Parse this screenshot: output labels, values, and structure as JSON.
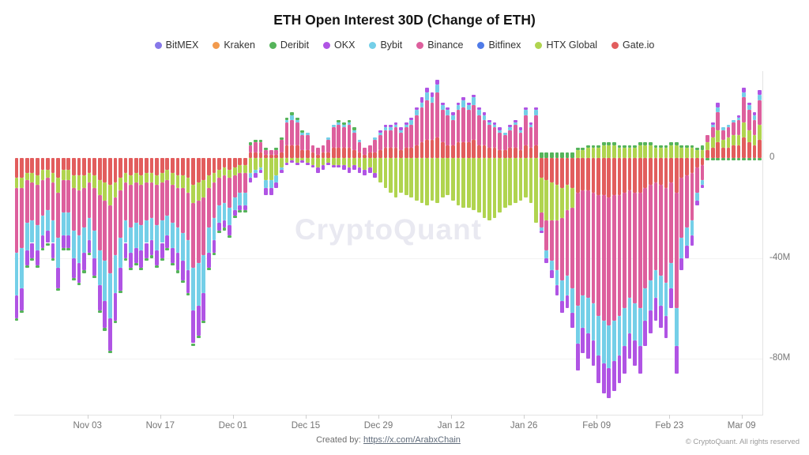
{
  "title": "ETH Open Interest 30D (Change of ETH)",
  "watermark": "CryptoQuant",
  "footer": {
    "created_by_label": "Created by:",
    "created_by_link": "https://x.com/ArabxChain",
    "copyright": "© CryptoQuant. All rights reserved"
  },
  "chart_data": {
    "type": "bar",
    "stacked": true,
    "title": "ETH Open Interest 30D (Change of ETH)",
    "unit": "M",
    "legend_position": "top",
    "grid": "horizontal-faint",
    "legend": [
      {
        "name": "BitMEX",
        "color": "#8678e9"
      },
      {
        "name": "Kraken",
        "color": "#f29a4d"
      },
      {
        "name": "Deribit",
        "color": "#55b45a"
      },
      {
        "name": "OKX",
        "color": "#b054e4"
      },
      {
        "name": "Bybit",
        "color": "#74cfe8"
      },
      {
        "name": "Binance",
        "color": "#dd5f9d"
      },
      {
        "name": "Bitfinex",
        "color": "#4f7be8"
      },
      {
        "name": "HTX Global",
        "color": "#b0d44f"
      },
      {
        "name": "Gate.io",
        "color": "#e25d5d"
      }
    ],
    "note": "values in millions; series not listed per-bar (BitMEX, Kraken, Bitfinex) are ~0",
    "stack_order": [
      "Gate.io",
      "HTX Global",
      "Binance",
      "Bybit",
      "OKX",
      "Deribit"
    ],
    "y_axis": {
      "side": "right",
      "max": 34.5,
      "min": -102.5,
      "ticks": [
        {
          "label": "0",
          "value": 0
        },
        {
          "label": "-40M",
          "value": -40
        },
        {
          "label": "-80M",
          "value": -80
        }
      ],
      "gridlines": [
        -40,
        -80
      ]
    },
    "x_axis": {
      "ticks": [
        {
          "label": "Nov 03",
          "index": 13.6
        },
        {
          "label": "Nov 17",
          "index": 27.6
        },
        {
          "label": "Dec 01",
          "index": 41.6
        },
        {
          "label": "Dec 15",
          "index": 55.6
        },
        {
          "label": "Dec 29",
          "index": 69.6
        },
        {
          "label": "Jan 12",
          "index": 83.6
        },
        {
          "label": "Jan 26",
          "index": 97.6
        },
        {
          "label": "Feb 09",
          "index": 111.6
        },
        {
          "label": "Feb 23",
          "index": 125.6
        },
        {
          "label": "Mar 09",
          "index": 139.5
        }
      ]
    },
    "bars": [
      [
        -8,
        -4,
        -26,
        -17,
        -9,
        -1
      ],
      [
        -8,
        -4,
        -24,
        -16,
        -9,
        -1
      ],
      [
        -6,
        -3,
        -17,
        -11,
        -6,
        -1
      ],
      [
        -6,
        -4,
        -15,
        -9,
        -6,
        -1
      ],
      [
        -7,
        -4,
        -16,
        -10,
        -6,
        -1
      ],
      [
        -5,
        -4,
        -14,
        -8,
        -5,
        -1
      ],
      [
        -5,
        -3,
        -13,
        -8,
        -5,
        -1
      ],
      [
        -6,
        -4,
        -15,
        -9,
        -6,
        -1
      ],
      [
        -8,
        -6,
        -18,
        -12,
        -8,
        -1
      ],
      [
        -5,
        -4,
        -13,
        -9,
        -5,
        -1
      ],
      [
        -5,
        -4,
        -13,
        -9,
        -5,
        -1
      ],
      [
        -7,
        -5,
        -17,
        -11,
        -8,
        -1
      ],
      [
        -7,
        -6,
        -18,
        -11,
        -8,
        -1
      ],
      [
        -7,
        -5,
        -16,
        -10,
        -7,
        -1
      ],
      [
        -6,
        -4,
        -14,
        -9,
        -5,
        -1
      ],
      [
        -7,
        -5,
        -17,
        -11,
        -7,
        -1
      ],
      [
        -9,
        -6,
        -22,
        -14,
        -10,
        -1
      ],
      [
        -10,
        -7,
        -24,
        -16,
        -11,
        -1
      ],
      [
        -11,
        -8,
        -27,
        -18,
        -13,
        -1
      ],
      [
        -10,
        -6,
        -23,
        -15,
        -11,
        -1
      ],
      [
        -8,
        -5,
        -19,
        -12,
        -9,
        -1
      ],
      [
        -6,
        -4,
        -15,
        -9,
        -6,
        -1
      ],
      [
        -7,
        -4,
        -17,
        -10,
        -6,
        -1
      ],
      [
        -6,
        -4,
        -16,
        -10,
        -6,
        -1
      ],
      [
        -7,
        -4,
        -16,
        -10,
        -7,
        -1
      ],
      [
        -6,
        -4,
        -15,
        -9,
        -6,
        -1
      ],
      [
        -6,
        -4,
        -14,
        -9,
        -6,
        -1
      ],
      [
        -7,
        -4,
        -16,
        -10,
        -6,
        -1
      ],
      [
        -6,
        -4,
        -15,
        -9,
        -6,
        -1
      ],
      [
        -5,
        -4,
        -14,
        -8,
        -5,
        -1
      ],
      [
        -6,
        -5,
        -15,
        -10,
        -6,
        -1
      ],
      [
        -7,
        -5,
        -16,
        -10,
        -7,
        -1
      ],
      [
        -7,
        -5,
        -18,
        -11,
        -8,
        -1
      ],
      [
        -8,
        -6,
        -19,
        -12,
        -9,
        -1
      ],
      [
        -11,
        -7,
        -26,
        -17,
        -13,
        -1
      ],
      [
        -10,
        -7,
        -25,
        -17,
        -12,
        -1
      ],
      [
        -9,
        -7,
        -23,
        -15,
        -11,
        -1
      ],
      [
        -7,
        -5,
        -16,
        -10,
        -6,
        -1
      ],
      [
        -6,
        -4,
        -14,
        -9,
        -5,
        -1
      ],
      [
        -5,
        -3,
        -11,
        -7,
        -3,
        -1
      ],
      [
        -4,
        -3,
        -11,
        -7,
        -3,
        -1
      ],
      [
        -5,
        -3,
        -12,
        -7,
        -4,
        -1
      ],
      [
        -4,
        -3,
        -9,
        -5,
        -2,
        -1
      ],
      [
        -3,
        -3,
        -8,
        -5,
        -2,
        -1
      ],
      [
        -3,
        -3,
        -8,
        -5,
        -2,
        -1
      ],
      [
        2,
        -6,
        3,
        -2,
        -2,
        1
      ],
      [
        2,
        -5,
        4,
        -1,
        -2,
        1
      ],
      [
        2,
        -4,
        4,
        -1,
        -1,
        1
      ],
      [
        1,
        -9,
        2,
        -3,
        -3,
        1
      ],
      [
        1,
        -9,
        2,
        -3,
        -3,
        0
      ],
      [
        1,
        -7,
        2,
        -3,
        -2,
        1
      ],
      [
        2,
        -4,
        5,
        -1,
        -1,
        1
      ],
      [
        5,
        -2,
        9,
        1,
        -1,
        1
      ],
      [
        5,
        -1,
        10,
        2,
        -1,
        1
      ],
      [
        5,
        -2,
        9,
        1,
        -1,
        1
      ],
      [
        3,
        -1,
        6,
        1,
        -1,
        1
      ],
      [
        3,
        -2,
        6,
        1,
        -1,
        0
      ],
      [
        2,
        -3,
        3,
        0,
        -1,
        0
      ],
      [
        1,
        -4,
        3,
        0,
        -2,
        0
      ],
      [
        2,
        -3,
        3,
        0,
        -2,
        0
      ],
      [
        2,
        -2,
        5,
        1,
        -1,
        0
      ],
      [
        4,
        -3,
        8,
        1,
        -1,
        0
      ],
      [
        4,
        -3,
        9,
        1,
        -1,
        1
      ],
      [
        4,
        -3,
        8,
        1,
        -2,
        1
      ],
      [
        4,
        -4,
        9,
        1,
        -2,
        1
      ],
      [
        3,
        -3,
        7,
        1,
        -2,
        1
      ],
      [
        2,
        -4,
        4,
        1,
        -2,
        0
      ],
      [
        1,
        -5,
        3,
        0,
        -2,
        0
      ],
      [
        2,
        -4,
        3,
        0,
        -2,
        0
      ],
      [
        2,
        -6,
        5,
        1,
        -2,
        0
      ],
      [
        3,
        -10,
        6,
        1,
        1,
        0
      ],
      [
        4,
        -12,
        7,
        1,
        1,
        0
      ],
      [
        4,
        -14,
        7,
        1,
        1,
        0
      ],
      [
        4,
        -16,
        8,
        1,
        1,
        0
      ],
      [
        3,
        -14,
        7,
        1,
        1,
        0
      ],
      [
        4,
        -15,
        8,
        1,
        1,
        0
      ],
      [
        4,
        -16,
        9,
        2,
        1,
        0
      ],
      [
        5,
        -17,
        12,
        2,
        1,
        0
      ],
      [
        6,
        -18,
        14,
        2,
        2,
        0
      ],
      [
        7,
        -19,
        16,
        3,
        2,
        0
      ],
      [
        7,
        -17,
        15,
        2,
        2,
        0
      ],
      [
        8,
        -18,
        18,
        3,
        2,
        0
      ],
      [
        6,
        -16,
        13,
        2,
        1,
        0
      ],
      [
        5,
        -15,
        12,
        2,
        1,
        0
      ],
      [
        5,
        -17,
        10,
        2,
        1,
        0
      ],
      [
        6,
        -19,
        13,
        2,
        1,
        0
      ],
      [
        6,
        -20,
        14,
        3,
        1,
        0
      ],
      [
        6,
        -20,
        13,
        2,
        1,
        0
      ],
      [
        7,
        -21,
        14,
        3,
        1,
        0
      ],
      [
        5,
        -22,
        12,
        2,
        1,
        0
      ],
      [
        5,
        -24,
        10,
        2,
        1,
        0
      ],
      [
        4,
        -25,
        9,
        1,
        1,
        0
      ],
      [
        4,
        -24,
        8,
        1,
        1,
        0
      ],
      [
        3,
        -22,
        7,
        1,
        1,
        0
      ],
      [
        3,
        -20,
        6,
        1,
        0,
        0
      ],
      [
        4,
        -19,
        7,
        1,
        1,
        0
      ],
      [
        4,
        -18,
        9,
        1,
        1,
        0
      ],
      [
        3,
        -17,
        7,
        1,
        1,
        0
      ],
      [
        5,
        -16,
        12,
        2,
        1,
        0
      ],
      [
        4,
        -18,
        8,
        1,
        1,
        0
      ],
      [
        5,
        -26,
        12,
        2,
        1,
        0
      ],
      [
        -8,
        -14,
        -6,
        -1,
        -1,
        2
      ],
      [
        -9,
        -16,
        -12,
        -3,
        -2,
        2
      ],
      [
        -10,
        -15,
        -16,
        -4,
        -3,
        2
      ],
      [
        -11,
        -14,
        -20,
        -6,
        -4,
        2
      ],
      [
        -12,
        -12,
        -25,
        -8,
        -5,
        2
      ],
      [
        -11,
        -10,
        -26,
        -8,
        -5,
        2
      ],
      [
        -12,
        -8,
        -32,
        -10,
        -6,
        2
      ],
      [
        -14,
        3,
        -45,
        -15,
        -11,
        1
      ],
      [
        -13,
        3,
        -42,
        -13,
        -10,
        1
      ],
      [
        -13,
        4,
        -43,
        -14,
        -10,
        1
      ],
      [
        -14,
        4,
        -44,
        -15,
        -10,
        1
      ],
      [
        -15,
        4,
        -48,
        -16,
        -11,
        1
      ],
      [
        -15,
        5,
        -50,
        -17,
        -12,
        1
      ],
      [
        -16,
        5,
        -51,
        -17,
        -12,
        1
      ],
      [
        -15,
        5,
        -50,
        -16,
        -12,
        1
      ],
      [
        -15,
        4,
        -48,
        -16,
        -11,
        1
      ],
      [
        -14,
        4,
        -46,
        -15,
        -11,
        1
      ],
      [
        -13,
        4,
        -43,
        -14,
        -10,
        1
      ],
      [
        -14,
        4,
        -44,
        -15,
        -10,
        1
      ],
      [
        -14,
        5,
        -46,
        -15,
        -11,
        1
      ],
      [
        -12,
        5,
        -40,
        -13,
        -10,
        1
      ],
      [
        -11,
        5,
        -38,
        -12,
        -9,
        1
      ],
      [
        -10,
        4,
        -35,
        -11,
        -9,
        1
      ],
      [
        -11,
        4,
        -36,
        -12,
        -9,
        1
      ],
      [
        -12,
        4,
        -38,
        -13,
        -9,
        1
      ],
      [
        -10,
        5,
        -32,
        -10,
        -8,
        1
      ],
      [
        -14,
        5,
        -46,
        -15,
        -11,
        1
      ],
      [
        -8,
        4,
        -24,
        -8,
        -5,
        1
      ],
      [
        -7,
        4,
        -21,
        -7,
        -5,
        1
      ],
      [
        -6,
        4,
        -19,
        -6,
        -4,
        1
      ],
      [
        -4,
        3,
        -10,
        -3,
        -2,
        1
      ],
      [
        -3,
        3,
        -6,
        -2,
        -1,
        2
      ],
      [
        3,
        3,
        3,
        0,
        0,
        -1
      ],
      [
        4,
        4,
        4,
        1,
        1,
        -1
      ],
      [
        6,
        5,
        7,
        2,
        2,
        -1
      ],
      [
        4,
        3,
        4,
        1,
        0,
        -1
      ],
      [
        4,
        4,
        4,
        1,
        0,
        -1
      ],
      [
        5,
        4,
        5,
        1,
        0,
        -1
      ],
      [
        5,
        4,
        6,
        1,
        1,
        -1
      ],
      [
        8,
        6,
        10,
        2,
        2,
        -1
      ],
      [
        6,
        5,
        8,
        2,
        1,
        -1
      ],
      [
        5,
        4,
        6,
        2,
        1,
        -1
      ],
      [
        7,
        6,
        10,
        2,
        2,
        -1
      ]
    ]
  }
}
